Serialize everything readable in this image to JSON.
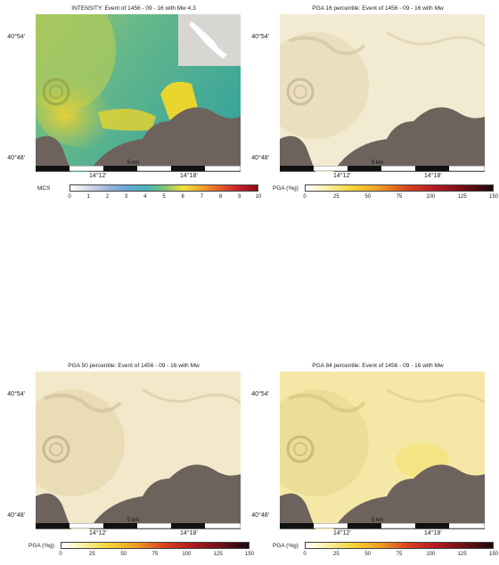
{
  "panels": [
    {
      "id": "intensity",
      "title": "INTENSITY: Event of 1456 - 09 - 16 with Mw 4.3",
      "lat_top": "40°54'",
      "lat_bottom": "40°48'",
      "lon_left": "14°12'",
      "lon_right": "14°18'",
      "scale_label": "5 km",
      "legend_label": "MCS",
      "ticks": [
        "0",
        "1",
        "2",
        "3",
        "4",
        "5",
        "6",
        "7",
        "8",
        "9",
        "10"
      ],
      "ramp": "intensity",
      "shading": "intensity"
    },
    {
      "id": "pga16",
      "title": "PGA 16 percentile: Event of 1456 - 09 - 16 with Mw",
      "lat_top": "40°54'",
      "lat_bottom": "40°48'",
      "lon_left": "14°12'",
      "lon_right": "14°18'",
      "scale_label": "5 km",
      "legend_label": "PGA (%g)",
      "ticks": [
        "0",
        "25",
        "50",
        "75",
        "100",
        "125",
        "150"
      ],
      "ramp": "pga",
      "shading": "pale"
    },
    {
      "id": "pga50",
      "title": "PGA 50 percentile: Event of 1456 - 09 - 16 with Mw",
      "lat_top": "40°54'",
      "lat_bottom": "40°48'",
      "lon_left": "14°12'",
      "lon_right": "14°18'",
      "scale_label": "5 km",
      "legend_label": "PGA (%g)",
      "ticks": [
        "0",
        "25",
        "50",
        "75",
        "100",
        "125",
        "150"
      ],
      "ramp": "pga",
      "shading": "pale"
    },
    {
      "id": "pga84",
      "title": "PGA 84 percentile: Event of 1456 - 09 - 16 with Mw",
      "lat_top": "40°54'",
      "lat_bottom": "40°48'",
      "lon_left": "14°12'",
      "lon_right": "14°18'",
      "scale_label": "5 km",
      "legend_label": "PGA (%g)",
      "ticks": [
        "0",
        "25",
        "50",
        "75",
        "100",
        "125",
        "150"
      ],
      "ramp": "pga",
      "shading": "yellow"
    }
  ],
  "colors": {
    "sea": "#6e625c",
    "scale_black": "#111111"
  }
}
